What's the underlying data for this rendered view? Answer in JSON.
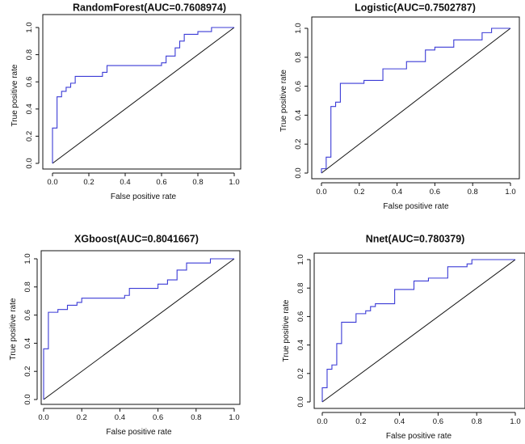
{
  "chart_data": [
    {
      "type": "line",
      "title": "RandomForest(AUC=0.7608974)",
      "xlabel": "False positive rate",
      "ylabel": "True positive rate",
      "xlim": [
        0,
        1
      ],
      "ylim": [
        0,
        1
      ],
      "xticks": [
        "0.0",
        "0.2",
        "0.4",
        "0.6",
        "0.8",
        "1.0"
      ],
      "yticks": [
        "0.0",
        "0.2",
        "0.4",
        "0.6",
        "0.8",
        "1.0"
      ],
      "reference_line": "diagonal",
      "line_color": "#3b3bd6",
      "x": [
        0,
        0,
        0.025,
        0.025,
        0.05,
        0.05,
        0.075,
        0.075,
        0.1,
        0.1,
        0.125,
        0.125,
        0.275,
        0.275,
        0.3,
        0.3,
        0.6,
        0.6,
        0.625,
        0.625,
        0.675,
        0.675,
        0.7,
        0.7,
        0.725,
        0.725,
        0.8,
        0.8,
        0.875,
        0.875,
        1
      ],
      "y": [
        0,
        0.26,
        0.26,
        0.49,
        0.49,
        0.53,
        0.53,
        0.56,
        0.56,
        0.59,
        0.59,
        0.64,
        0.64,
        0.67,
        0.67,
        0.72,
        0.72,
        0.74,
        0.74,
        0.79,
        0.79,
        0.85,
        0.85,
        0.9,
        0.9,
        0.95,
        0.95,
        0.97,
        0.97,
        1.0,
        1.0
      ]
    },
    {
      "type": "line",
      "title": "Logistic(AUC=0.7502787)",
      "xlabel": "False positive rate",
      "ylabel": "True positive rate",
      "xlim": [
        0,
        1
      ],
      "ylim": [
        0,
        1
      ],
      "xticks": [
        "0.0",
        "0.2",
        "0.4",
        "0.6",
        "0.8",
        "1.0"
      ],
      "yticks": [
        "0.0",
        "0.2",
        "0.4",
        "0.6",
        "0.8",
        "1.0"
      ],
      "reference_line": "diagonal",
      "line_color": "#3b3bd6",
      "x": [
        0,
        0,
        0.025,
        0.025,
        0.05,
        0.05,
        0.075,
        0.075,
        0.1,
        0.1,
        0.225,
        0.225,
        0.325,
        0.325,
        0.45,
        0.45,
        0.55,
        0.55,
        0.6,
        0.6,
        0.7,
        0.7,
        0.85,
        0.85,
        0.9,
        0.9,
        1
      ],
      "y": [
        0,
        0.03,
        0.03,
        0.11,
        0.11,
        0.46,
        0.46,
        0.49,
        0.49,
        0.62,
        0.62,
        0.64,
        0.64,
        0.72,
        0.72,
        0.77,
        0.77,
        0.85,
        0.85,
        0.87,
        0.87,
        0.92,
        0.92,
        0.97,
        0.97,
        1.0,
        1.0
      ]
    },
    {
      "type": "line",
      "title": "XGboost(AUC=0.8041667)",
      "xlabel": "False positive rate",
      "ylabel": "True positive rate",
      "xlim": [
        0,
        1
      ],
      "ylim": [
        0,
        1
      ],
      "xticks": [
        "0.0",
        "0.2",
        "0.4",
        "0.6",
        "0.8",
        "1.0"
      ],
      "yticks": [
        "0.0",
        "0.2",
        "0.4",
        "0.6",
        "0.8",
        "1.0"
      ],
      "reference_line": "diagonal",
      "line_color": "#3b3bd6",
      "x": [
        0,
        0,
        0.025,
        0.025,
        0.075,
        0.075,
        0.125,
        0.125,
        0.175,
        0.175,
        0.2,
        0.2,
        0.425,
        0.425,
        0.45,
        0.45,
        0.6,
        0.6,
        0.65,
        0.65,
        0.7,
        0.7,
        0.75,
        0.75,
        0.875,
        0.875,
        1
      ],
      "y": [
        0,
        0.36,
        0.36,
        0.62,
        0.62,
        0.64,
        0.64,
        0.67,
        0.67,
        0.69,
        0.69,
        0.72,
        0.72,
        0.74,
        0.74,
        0.79,
        0.79,
        0.82,
        0.82,
        0.85,
        0.85,
        0.92,
        0.92,
        0.97,
        0.97,
        1.0,
        1.0
      ]
    },
    {
      "type": "line",
      "title": "Nnet(AUC=0.780379)",
      "xlabel": "False positive rate",
      "ylabel": "True positive rate",
      "xlim": [
        0,
        1
      ],
      "ylim": [
        0,
        1
      ],
      "xticks": [
        "0.0",
        "0.2",
        "0.4",
        "0.6",
        "0.8",
        "1.0"
      ],
      "yticks": [
        "0.0",
        "0.2",
        "0.4",
        "0.6",
        "0.8",
        "1.0"
      ],
      "reference_line": "diagonal",
      "line_color": "#3b3bd6",
      "x": [
        0,
        0,
        0.025,
        0.025,
        0.05,
        0.05,
        0.075,
        0.075,
        0.1,
        0.1,
        0.175,
        0.175,
        0.225,
        0.225,
        0.25,
        0.25,
        0.275,
        0.275,
        0.375,
        0.375,
        0.475,
        0.475,
        0.55,
        0.55,
        0.65,
        0.65,
        0.75,
        0.75,
        0.775,
        0.775,
        1
      ],
      "y": [
        0,
        0.1,
        0.1,
        0.23,
        0.23,
        0.26,
        0.26,
        0.41,
        0.41,
        0.56,
        0.56,
        0.62,
        0.62,
        0.64,
        0.64,
        0.67,
        0.67,
        0.69,
        0.69,
        0.79,
        0.79,
        0.85,
        0.85,
        0.87,
        0.87,
        0.95,
        0.95,
        0.97,
        0.97,
        1.0,
        1.0
      ]
    }
  ]
}
